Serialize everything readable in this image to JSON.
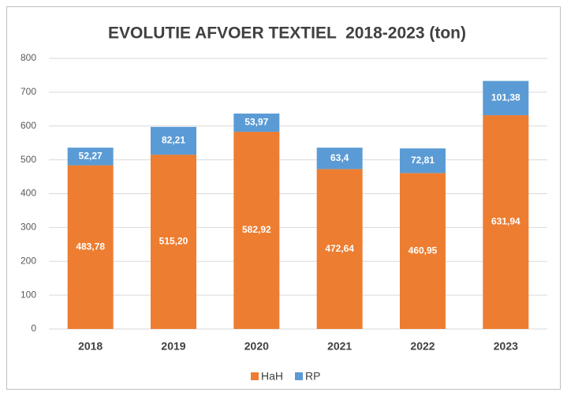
{
  "chart_data": {
    "type": "stacked_bar",
    "title": "EVOLUTIE AFVOER TEXTIEL  2018-2023 (ton)",
    "categories": [
      "2018",
      "2019",
      "2020",
      "2021",
      "2022",
      "2023"
    ],
    "series": [
      {
        "name": "HaH",
        "color": "#ED7D31",
        "values": [
          483.78,
          515.2,
          582.92,
          472.64,
          460.95,
          631.94
        ],
        "value_labels": [
          "483,78",
          "515,20",
          "582,92",
          "472,64",
          "460,95",
          "631,94"
        ]
      },
      {
        "name": "RP",
        "color": "#5B9BD5",
        "values": [
          52.27,
          82.21,
          53.97,
          63.4,
          72.81,
          101.38
        ],
        "value_labels": [
          "52,27",
          "82,21",
          "53,97",
          "63,4",
          "72,81",
          "101,38"
        ]
      }
    ],
    "ylim": [
      0,
      800
    ],
    "yticks": [
      0,
      100,
      200,
      300,
      400,
      500,
      600,
      700,
      800
    ],
    "grid": true,
    "legend": "bottom"
  }
}
